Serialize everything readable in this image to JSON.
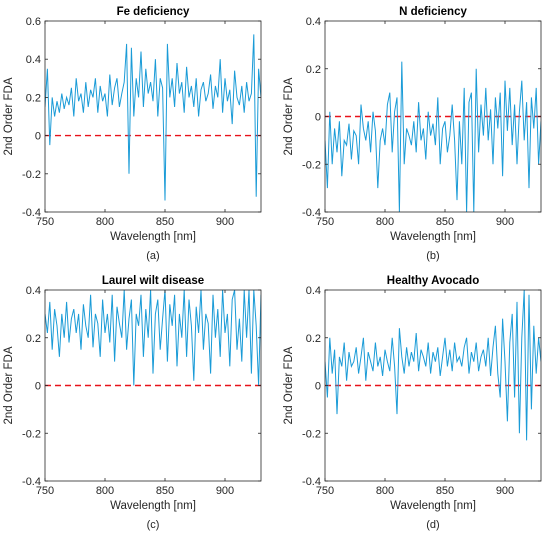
{
  "chart_data": [
    {
      "type": "line",
      "title": "Fe deficiency",
      "xlabel": "Wavelength [nm]",
      "ylabel": "2nd Order FDA",
      "caption": "(a)",
      "xlim": [
        750,
        930
      ],
      "ylim": [
        -0.4,
        0.6
      ],
      "xticks": [
        750,
        800,
        850,
        900
      ],
      "yticks": [
        -0.4,
        -0.2,
        0,
        0.2,
        0.4,
        0.6
      ],
      "series": [
        {
          "x": [
            750,
            752,
            754,
            756,
            758,
            760,
            762,
            764,
            766,
            768,
            770,
            772,
            774,
            776,
            778,
            780,
            782,
            784,
            786,
            788,
            790,
            792,
            794,
            796,
            798,
            800,
            802,
            804,
            806,
            808,
            810,
            812,
            814,
            816,
            818,
            820,
            822,
            824,
            826,
            828,
            830,
            832,
            834,
            836,
            838,
            840,
            842,
            844,
            846,
            848,
            850,
            852,
            854,
            856,
            858,
            860,
            862,
            864,
            866,
            868,
            870,
            872,
            874,
            876,
            878,
            880,
            882,
            884,
            886,
            888,
            890,
            892,
            894,
            896,
            898,
            900,
            902,
            904,
            906,
            908,
            910,
            912,
            914,
            916,
            918,
            920,
            922,
            924,
            926,
            928,
            930
          ],
          "values": [
            0.15,
            0.35,
            -0.05,
            0.2,
            0.1,
            0.18,
            0.12,
            0.22,
            0.14,
            0.2,
            0.16,
            0.25,
            0.1,
            0.3,
            0.18,
            0.22,
            0.12,
            0.28,
            0.15,
            0.24,
            0.2,
            0.3,
            0.12,
            0.26,
            0.18,
            0.22,
            0.1,
            0.32,
            0.16,
            0.25,
            0.3,
            0.15,
            0.22,
            0.28,
            0.48,
            -0.2,
            0.46,
            0.1,
            0.3,
            0.2,
            0.44,
            0.15,
            0.35,
            0.22,
            0.28,
            0.18,
            0.4,
            0.1,
            0.3,
            0.25,
            -0.34,
            0.48,
            0.2,
            0.3,
            0.15,
            0.38,
            0.22,
            0.28,
            0.12,
            0.36,
            0.2,
            0.26,
            0.15,
            0.3,
            0.1,
            0.24,
            0.28,
            0.18,
            0.22,
            0.32,
            0.14,
            0.26,
            0.2,
            0.4,
            0.12,
            0.3,
            0.18,
            0.24,
            0.06,
            0.34,
            0.2,
            0.16,
            0.26,
            0.12,
            0.28,
            0.18,
            0.22,
            0.53,
            -0.32,
            0.35,
            0.2
          ]
        }
      ],
      "reference_line": {
        "y": 0,
        "style": "dashed"
      }
    },
    {
      "type": "line",
      "title": "N deficiency",
      "xlabel": "Wavelength [nm]",
      "ylabel": "2nd Order FDA",
      "caption": "(b)",
      "xlim": [
        750,
        930
      ],
      "ylim": [
        -0.4,
        0.4
      ],
      "xticks": [
        750,
        800,
        850,
        900
      ],
      "yticks": [
        -0.4,
        -0.2,
        0,
        0.2,
        0.4
      ],
      "series": [
        {
          "x": [
            750,
            752,
            754,
            756,
            758,
            760,
            762,
            764,
            766,
            768,
            770,
            772,
            774,
            776,
            778,
            780,
            782,
            784,
            786,
            788,
            790,
            792,
            794,
            796,
            798,
            800,
            802,
            804,
            806,
            808,
            810,
            812,
            814,
            816,
            818,
            820,
            822,
            824,
            826,
            828,
            830,
            832,
            834,
            836,
            838,
            840,
            842,
            844,
            846,
            848,
            850,
            852,
            854,
            856,
            858,
            860,
            862,
            864,
            866,
            868,
            870,
            872,
            874,
            876,
            878,
            880,
            882,
            884,
            886,
            888,
            890,
            892,
            894,
            896,
            898,
            900,
            902,
            904,
            906,
            908,
            910,
            912,
            914,
            916,
            918,
            920,
            922,
            924,
            926,
            928,
            930
          ],
          "values": [
            -0.1,
            -0.3,
            0.02,
            -0.2,
            -0.05,
            -0.15,
            -0.02,
            -0.25,
            -0.1,
            -0.12,
            -0.03,
            -0.18,
            -0.06,
            -0.08,
            -0.2,
            0.05,
            -0.05,
            -0.1,
            -0.02,
            -0.15,
            0.02,
            -0.06,
            -0.3,
            -0.1,
            -0.05,
            -0.12,
            0.05,
            0.1,
            -0.15,
            0.02,
            0.08,
            -0.4,
            0.23,
            -0.2,
            -0.05,
            -0.08,
            -0.12,
            -0.02,
            -0.15,
            0.06,
            -0.1,
            -0.05,
            -0.18,
            0.02,
            -0.08,
            -0.03,
            -0.12,
            0.08,
            -0.2,
            -0.05,
            -0.02,
            -0.15,
            -0.08,
            0.05,
            -0.1,
            -0.35,
            -0.02,
            -0.2,
            0.12,
            -0.4,
            0.06,
            0.1,
            -0.4,
            0.2,
            -0.15,
            0.05,
            -0.08,
            0.12,
            -0.1,
            0.03,
            -0.2,
            0.08,
            -0.05,
            0.1,
            -0.25,
            0.15,
            -0.06,
            0.12,
            -0.12,
            0.05,
            -0.2,
            0.02,
            0.15,
            -0.1,
            0.06,
            -0.3,
            0.08,
            -0.05,
            0.12,
            -0.2,
            -0.02
          ]
        }
      ],
      "reference_line": {
        "y": 0,
        "style": "dashed"
      }
    },
    {
      "type": "line",
      "title": "Laurel wilt disease",
      "xlabel": "Wavelength [nm]",
      "ylabel": "2nd Order FDA",
      "caption": "(c)",
      "xlim": [
        750,
        930
      ],
      "ylim": [
        -0.4,
        0.4
      ],
      "xticks": [
        750,
        800,
        850,
        900
      ],
      "yticks": [
        -0.4,
        -0.2,
        0,
        0.2,
        0.4
      ],
      "series": [
        {
          "x": [
            750,
            752,
            754,
            756,
            758,
            760,
            762,
            764,
            766,
            768,
            770,
            772,
            774,
            776,
            778,
            780,
            782,
            784,
            786,
            788,
            790,
            792,
            794,
            796,
            798,
            800,
            802,
            804,
            806,
            808,
            810,
            812,
            814,
            816,
            818,
            820,
            822,
            824,
            826,
            828,
            830,
            832,
            834,
            836,
            838,
            840,
            842,
            844,
            846,
            848,
            850,
            852,
            854,
            856,
            858,
            860,
            862,
            864,
            866,
            868,
            870,
            872,
            874,
            876,
            878,
            880,
            882,
            884,
            886,
            888,
            890,
            892,
            894,
            896,
            898,
            900,
            902,
            904,
            906,
            908,
            910,
            912,
            914,
            916,
            918,
            920,
            922,
            924,
            926,
            928,
            930
          ],
          "values": [
            0.3,
            0.22,
            0.35,
            0.15,
            0.32,
            0.25,
            0.12,
            0.3,
            0.2,
            0.35,
            0.18,
            0.28,
            0.32,
            0.22,
            0.3,
            0.15,
            0.34,
            0.25,
            0.2,
            0.38,
            0.16,
            0.3,
            0.26,
            0.12,
            0.36,
            0.22,
            0.3,
            0.18,
            0.38,
            0.1,
            0.33,
            0.26,
            0.2,
            0.4,
            0.15,
            0.28,
            0.36,
            0.0,
            0.3,
            0.25,
            0.38,
            0.12,
            0.32,
            0.2,
            0.4,
            0.05,
            0.3,
            0.36,
            0.15,
            0.28,
            0.4,
            0.1,
            0.34,
            0.25,
            0.38,
            0.08,
            0.3,
            0.2,
            0.4,
            0.12,
            0.36,
            0.25,
            0.02,
            0.33,
            0.22,
            0.4,
            0.15,
            0.3,
            0.26,
            0.05,
            0.38,
            0.2,
            0.32,
            0.12,
            0.4,
            0.22,
            0.3,
            0.08,
            0.36,
            0.4,
            0.15,
            0.28,
            0.1,
            0.4,
            0.2,
            0.4,
            0.05,
            0.4,
            0.25,
            0.0,
            0.38
          ]
        }
      ],
      "reference_line": {
        "y": 0,
        "style": "dashed"
      }
    },
    {
      "type": "line",
      "title": "Healthy Avocado",
      "xlabel": "Wavelength [nm]",
      "ylabel": "2nd Order FDA",
      "caption": "(d)",
      "xlim": [
        750,
        930
      ],
      "ylim": [
        -0.4,
        0.4
      ],
      "xticks": [
        750,
        800,
        850,
        900
      ],
      "yticks": [
        -0.4,
        -0.2,
        0,
        0.2,
        0.4
      ],
      "series": [
        {
          "x": [
            750,
            752,
            754,
            756,
            758,
            760,
            762,
            764,
            766,
            768,
            770,
            772,
            774,
            776,
            778,
            780,
            782,
            784,
            786,
            788,
            790,
            792,
            794,
            796,
            798,
            800,
            802,
            804,
            806,
            808,
            810,
            812,
            814,
            816,
            818,
            820,
            822,
            824,
            826,
            828,
            830,
            832,
            834,
            836,
            838,
            840,
            842,
            844,
            846,
            848,
            850,
            852,
            854,
            856,
            858,
            860,
            862,
            864,
            866,
            868,
            870,
            872,
            874,
            876,
            878,
            880,
            882,
            884,
            886,
            888,
            890,
            892,
            894,
            896,
            898,
            900,
            902,
            904,
            906,
            908,
            910,
            912,
            914,
            916,
            918,
            920,
            922,
            924,
            926,
            928,
            930
          ],
          "values": [
            0.1,
            -0.05,
            0.2,
            0.05,
            0.15,
            -0.12,
            0.12,
            0.08,
            0.18,
            0.02,
            0.14,
            0.08,
            0.1,
            0.16,
            0.05,
            0.12,
            0.2,
            0.02,
            0.14,
            0.1,
            0.06,
            0.18,
            0.08,
            0.12,
            0.04,
            0.15,
            0.1,
            0.06,
            0.2,
            0.08,
            -0.12,
            0.24,
            0.12,
            0.05,
            0.16,
            0.08,
            0.14,
            0.1,
            0.22,
            0.06,
            0.15,
            0.12,
            0.08,
            0.18,
            0.05,
            0.14,
            0.1,
            0.16,
            0.04,
            0.12,
            0.2,
            0.08,
            0.15,
            0.06,
            0.18,
            0.1,
            0.12,
            0.08,
            0.16,
            0.2,
            0.05,
            0.14,
            0.1,
            0.18,
            0.06,
            0.12,
            0.15,
            0.08,
            0.2,
            0.04,
            0.16,
            0.25,
            0.05,
            -0.05,
            0.28,
            0.1,
            -0.15,
            0.18,
            0.3,
            -0.05,
            0.35,
            -0.2,
            0.2,
            0.4,
            -0.23,
            0.38,
            -0.1,
            0.25,
            0.05,
            0.2,
            0.1
          ]
        }
      ],
      "reference_line": {
        "y": 0,
        "style": "dashed"
      }
    }
  ],
  "colors": {
    "series": "#1a9bd7",
    "reference": "#e8121b",
    "axis": "#262626",
    "text": "#262626"
  }
}
